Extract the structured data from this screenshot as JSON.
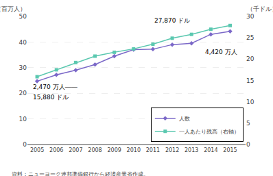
{
  "chart_data": {
    "type": "line",
    "x": [
      2005,
      2006,
      2007,
      2008,
      2009,
      2010,
      2011,
      2012,
      2013,
      2014,
      2015
    ],
    "xlim": [
      2004.5,
      2015.8
    ],
    "xticks": [
      2005,
      2006,
      2007,
      2008,
      2009,
      2010,
      2011,
      2012,
      2013,
      2014,
      2015
    ],
    "ylim": [
      0,
      50
    ],
    "yticks": [
      0,
      10,
      20,
      30,
      40,
      50
    ],
    "y2lim": [
      0,
      30
    ],
    "y2ticks": [
      0,
      5,
      10,
      15,
      20,
      25,
      30
    ],
    "ylabel": "（百万人）",
    "y2label": "（千ドル）",
    "grid": true,
    "legend": "lower right",
    "series": [
      {
        "name": "人数",
        "color": "#7b68c8",
        "marker": "diamond",
        "axis": "y",
        "values": [
          24.7,
          27.2,
          29.0,
          31.2,
          34.5,
          37.0,
          37.2,
          39.0,
          39.5,
          43.0,
          44.2
        ]
      },
      {
        "name": "一人あたり残高（右軸）",
        "color": "#5bc8b0",
        "marker": "square",
        "axis": "y2",
        "values": [
          15.88,
          17.5,
          19.2,
          20.7,
          21.6,
          22.4,
          23.5,
          24.9,
          25.8,
          27.0,
          27.87
        ]
      }
    ],
    "annotations": [
      "15,880 ドル",
      "2,470 万人――",
      "4,420 万人",
      "27,870 ドル"
    ],
    "source": "資料：ニューヨーク連邦準備銀行から経済産業省作成。"
  }
}
